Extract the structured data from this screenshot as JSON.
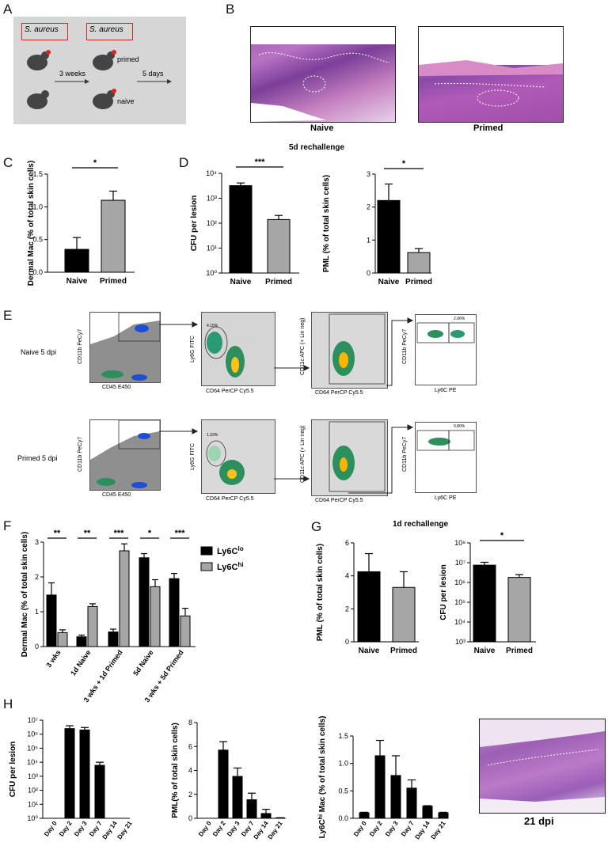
{
  "panels": {
    "A": "A",
    "B": "B",
    "C": "C",
    "D": "D",
    "E": "E",
    "F": "F",
    "G": "G",
    "H": "H"
  },
  "panelA": {
    "box1": "S. aureus",
    "box2": "S. aureus",
    "primed": "primed",
    "naive": "naive",
    "arrow1": "3 weeks",
    "arrow2": "5 days"
  },
  "panelB": {
    "naive": "Naive",
    "primed": "Primed"
  },
  "header_5d": "5d rechallenge",
  "header_1d": "1d rechallenge",
  "panelE": {
    "row1_label": "Naive 5 dpi",
    "row2_label": "Primed 5 dpi",
    "cd11b": "CD11b PeCy7",
    "cd45": "CD45 E450",
    "ly6g": "Ly6G FITC",
    "cd64": "CD64 PerCP Cy5.5",
    "cd11c": "CD11c APC (+ Lin neg)",
    "ly6c": "Ly6C PE",
    "gate_naive_ly6g": "4.15%",
    "gate_naive_ly6c": "2.06%",
    "gate_primed_ly6g": "1.33%",
    "gate_primed_ly6c": "0.80%"
  },
  "panelH_image_label": "21 dpi",
  "chart_data": [
    {
      "id": "C",
      "type": "bar",
      "categories": [
        "Naive",
        "Primed"
      ],
      "values": [
        0.35,
        1.1
      ],
      "errors": [
        0.18,
        0.14
      ],
      "colors": [
        "#000000",
        "#a6a6a6"
      ],
      "ylabel": "Dermal Mac (% of total skin cells)",
      "ylim": [
        0,
        1.5
      ],
      "yticks": [
        "0.0",
        "0.5",
        "1.0",
        "1.5"
      ],
      "ytick_values": [
        0,
        0.5,
        1.0,
        1.5
      ],
      "significance": [
        {
          "label": "*",
          "from": 0,
          "to": 1
        }
      ]
    },
    {
      "id": "D1",
      "type": "bar",
      "scale": "log",
      "categories": [
        "Naive",
        "Primed"
      ],
      "values": [
        3200,
        140
      ],
      "errors_high": [
        4100,
        205
      ],
      "colors": [
        "#000000",
        "#a6a6a6"
      ],
      "ylabel": "CFU per lesion",
      "ylim": [
        1,
        10000
      ],
      "yticks": [
        "10⁰",
        "10¹",
        "10²",
        "10³",
        "10⁴"
      ],
      "ytick_values": [
        1,
        10,
        100,
        1000,
        10000
      ],
      "significance": [
        {
          "label": "***",
          "from": 0,
          "to": 1
        }
      ]
    },
    {
      "id": "D2",
      "type": "bar",
      "categories": [
        "Naive",
        "Primed"
      ],
      "values": [
        2.2,
        0.62
      ],
      "errors": [
        0.5,
        0.12
      ],
      "colors": [
        "#000000",
        "#a6a6a6"
      ],
      "ylabel": "PML (% of total skin cells)",
      "ylim": [
        0,
        3
      ],
      "yticks": [
        "0",
        "1",
        "2",
        "3"
      ],
      "ytick_values": [
        0,
        1,
        2,
        3
      ],
      "significance": [
        {
          "label": "*",
          "from": 0,
          "to": 1
        }
      ]
    },
    {
      "id": "F",
      "type": "bar",
      "categories": [
        "3 wks",
        "1d Naive",
        "3 wks + 1d Primed",
        "5d Naive",
        "3 wks + 5d Primed"
      ],
      "series": [
        {
          "name": "Ly6C",
          "sup": "lo",
          "color": "#000000",
          "values": [
            1.48,
            0.28,
            0.42,
            2.55,
            1.95
          ],
          "errors": [
            0.35,
            0.05,
            0.08,
            0.12,
            0.15
          ]
        },
        {
          "name": "Ly6C",
          "sup": "hi",
          "color": "#a6a6a6",
          "values": [
            0.4,
            1.15,
            2.75,
            1.72,
            0.88
          ],
          "errors": [
            0.08,
            0.08,
            0.2,
            0.2,
            0.22
          ]
        }
      ],
      "ylabel": "Dermal Mac (% of total skin cells)",
      "ylim": [
        0,
        3
      ],
      "yticks": [
        "0",
        "1",
        "2",
        "3"
      ],
      "ytick_values": [
        0,
        1,
        2,
        3
      ],
      "significance": [
        "**",
        "**",
        "***",
        "*",
        "***"
      ]
    },
    {
      "id": "G1",
      "type": "bar",
      "categories": [
        "Naive",
        "Primed"
      ],
      "values": [
        4.25,
        3.3
      ],
      "errors": [
        1.1,
        0.95
      ],
      "colors": [
        "#000000",
        "#a6a6a6"
      ],
      "ylabel": "PML (% of total skin cells)",
      "ylim": [
        0,
        6
      ],
      "yticks": [
        "0",
        "2",
        "4",
        "6"
      ],
      "ytick_values": [
        0,
        2,
        4,
        6
      ]
    },
    {
      "id": "G2",
      "type": "bar",
      "scale": "log",
      "categories": [
        "Naive",
        "Primed"
      ],
      "values": [
        7500000,
        1800000
      ],
      "errors_high": [
        10500000,
        2500000
      ],
      "colors": [
        "#000000",
        "#a6a6a6"
      ],
      "ylabel": "CFU per lesion",
      "ylim": [
        1000,
        100000000
      ],
      "yticks": [
        "10³",
        "10⁴",
        "10⁵",
        "10⁶",
        "10⁷",
        "10⁸"
      ],
      "ytick_values": [
        1000,
        10000,
        100000,
        1000000,
        10000000,
        100000000
      ],
      "significance": [
        {
          "label": "*",
          "from": 0,
          "to": 1
        }
      ]
    },
    {
      "id": "H1",
      "type": "bar",
      "scale": "log",
      "categories": [
        "Day 0",
        "Day 2",
        "Day 3",
        "Day 7",
        "Day 14",
        "Day 21"
      ],
      "values": [
        null,
        2500000,
        2000000,
        6000,
        null,
        null
      ],
      "errors_high": [
        null,
        4000000,
        3000000,
        10000,
        null,
        null
      ],
      "colors": [
        "#000000"
      ],
      "ylabel": "CFU per lesion",
      "ylim": [
        1,
        10000000
      ],
      "yticks": [
        "10⁰",
        "10¹",
        "10²",
        "10³",
        "10⁴",
        "10⁵",
        "10⁶",
        "10⁷"
      ],
      "ytick_values": [
        1,
        10,
        100,
        1000,
        10000,
        100000,
        1000000,
        10000000
      ]
    },
    {
      "id": "H2",
      "type": "bar",
      "categories": [
        "Day 0",
        "Day 2",
        "Day 3",
        "Day 7",
        "Day 14",
        "Day 21"
      ],
      "values": [
        0,
        5.7,
        3.5,
        1.55,
        0.4,
        0.03
      ],
      "errors": [
        0,
        0.7,
        0.7,
        0.55,
        0.35,
        0.02
      ],
      "colors": [
        "#000000"
      ],
      "ylabel": "PML(% of total skin cells)",
      "ylim": [
        0,
        8
      ],
      "yticks": [
        "0",
        "2",
        "4",
        "6",
        "8"
      ],
      "ytick_values": [
        0,
        2,
        4,
        6,
        8
      ]
    },
    {
      "id": "H3",
      "type": "bar",
      "categories": [
        "Day 0",
        "Day 2",
        "Day 3",
        "Day 7",
        "Day 14",
        "Day 21"
      ],
      "values": [
        0.1,
        1.14,
        0.78,
        0.55,
        0.22,
        0.1
      ],
      "errors": [
        0.01,
        0.28,
        0.36,
        0.15,
        0.01,
        0.01
      ],
      "colors": [
        "#000000"
      ],
      "ylabel": "Ly6C",
      "ylabel_sup": "hi",
      "ylabel_rest": " Mac (% of total skin cells)",
      "ylim": [
        0,
        1.5
      ],
      "yticks": [
        "0.0",
        "0.5",
        "1.0",
        "1.5"
      ],
      "ytick_values": [
        0,
        0.5,
        1.0,
        1.5
      ]
    }
  ]
}
